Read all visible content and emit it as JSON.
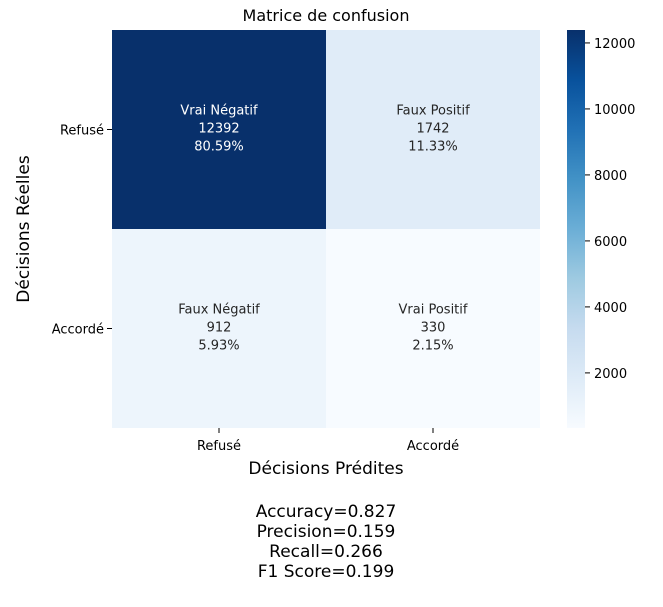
{
  "chart_data": {
    "type": "heatmap",
    "title": "Matrice de confusion",
    "xlabel": "Décisions Prédites",
    "ylabel": "Décisions Réelles",
    "x_categories": [
      "Refusé",
      "Accordé"
    ],
    "y_categories": [
      "Refusé",
      "Accordé"
    ],
    "cells": [
      [
        {
          "name": "Vrai Négatif",
          "count": "12392",
          "percent": "80.59%",
          "value": 12392
        },
        {
          "name": "Faux Positif",
          "count": "1742",
          "percent": "11.33%",
          "value": 1742
        }
      ],
      [
        {
          "name": "Faux Négatif",
          "count": "912",
          "percent": "5.93%",
          "value": 912
        },
        {
          "name": "Vrai Positif",
          "count": "330",
          "percent": "2.15%",
          "value": 330
        }
      ]
    ],
    "colorbar": {
      "min": 330,
      "max": 12392,
      "ticks": [
        "2000",
        "4000",
        "6000",
        "8000",
        "10000",
        "12000"
      ],
      "colormap": "Blues",
      "colors": {
        "low": "#f7fbff",
        "high": "#08306b"
      }
    },
    "grid": false,
    "legend": "right"
  },
  "metrics": [
    "Accuracy=0.827",
    "Precision=0.159",
    "Recall=0.266",
    "F1 Score=0.199"
  ]
}
